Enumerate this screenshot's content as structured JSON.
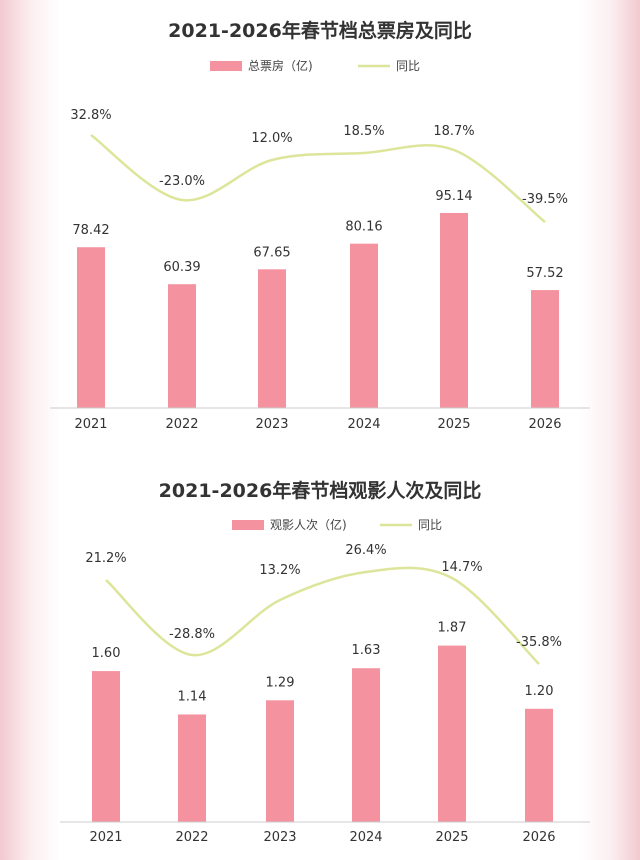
{
  "chart_data": [
    {
      "type": "bar",
      "title": "2021-2026年春节档总票房及同比",
      "categories": [
        "2021",
        "2022",
        "2023",
        "2024",
        "2025",
        "2026"
      ],
      "series": [
        {
          "name": "总票房（亿)",
          "type": "bar",
          "values": [
            78.42,
            60.39,
            67.65,
            80.16,
            95.14,
            57.52
          ]
        },
        {
          "name": "同比",
          "type": "line",
          "values": [
            32.8,
            -23.0,
            12.0,
            18.5,
            18.7,
            -39.5
          ]
        }
      ],
      "bar_labels": [
        "78.42",
        "60.39",
        "67.65",
        "80.16",
        "95.14",
        "57.52"
      ],
      "line_labels": [
        "32.8%",
        "-23.0%",
        "12.0%",
        "18.5%",
        "18.7%",
        "-39.5%"
      ],
      "ylim": [
        0,
        160
      ],
      "line_ylim": [
        -60,
        60
      ],
      "legend": "top",
      "grid": false
    },
    {
      "type": "bar",
      "title": "2021-2026年春节档观影人次及同比",
      "categories": [
        "2021",
        "2022",
        "2023",
        "2024",
        "2025",
        "2026"
      ],
      "series": [
        {
          "name": "观影人次（亿)",
          "type": "bar",
          "values": [
            1.6,
            1.14,
            1.29,
            1.63,
            1.87,
            1.2
          ]
        },
        {
          "name": "同比",
          "type": "line",
          "values": [
            21.2,
            -28.8,
            13.2,
            26.4,
            14.7,
            -35.8
          ]
        }
      ],
      "bar_labels": [
        "1.60",
        "1.14",
        "1.29",
        "1.63",
        "1.87",
        "1.20"
      ],
      "line_labels": [
        "21.2%",
        "-28.8%",
        "13.2%",
        "26.4%",
        "14.7%",
        "-35.8%"
      ],
      "ylim": [
        0,
        3.0
      ],
      "line_ylim": [
        -40,
        35
      ],
      "legend": "top",
      "grid": false
    }
  ],
  "colors": {
    "bar": "#f4929f",
    "line": "#dde59a",
    "axis": "#cccccc",
    "text": "#333333"
  }
}
